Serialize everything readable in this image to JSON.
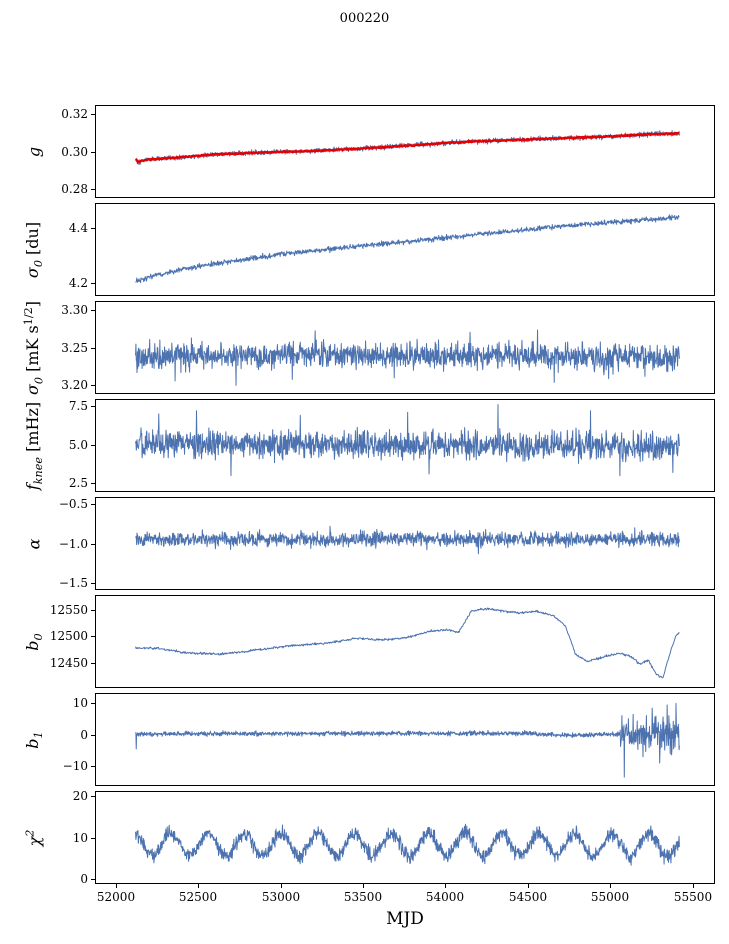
{
  "chart_data": {
    "type": "line",
    "title": "000220",
    "xlabel": "MJD",
    "grid": false,
    "legend_position": "none",
    "xlim": [
      51880,
      55630
    ],
    "x_ticks": [
      52000,
      52500,
      53000,
      53500,
      54000,
      54500,
      55000,
      55500
    ],
    "x_tick_labels": [
      "52000",
      "52500",
      "53000",
      "53500",
      "54000",
      "54500",
      "55000",
      "55500"
    ],
    "x_data_range": [
      52120,
      55420
    ],
    "colors": {
      "line": "#4c72b0",
      "overlay": "#e60000",
      "axis": "#000000",
      "background": "#ffffff"
    },
    "subplots": [
      {
        "ylabel": "g",
        "ylim": [
          0.2755,
          0.3245
        ],
        "yticks": [
          0.28,
          0.3,
          0.32
        ],
        "ytick_labels": [
          "0.28",
          "0.30",
          "0.32"
        ],
        "series": [
          {
            "name": "g raw",
            "color": "#4c72b0",
            "width": 1,
            "points": 1500,
            "noise": 0.0008,
            "seed": 101,
            "trend": [
              [
                52120,
                0.2958
              ],
              [
                52135,
                0.2942
              ],
              [
                52155,
                0.295
              ],
              [
                52200,
                0.2957
              ],
              [
                52300,
                0.2963
              ],
              [
                52450,
                0.2974
              ],
              [
                52600,
                0.2984
              ],
              [
                52800,
                0.2992
              ],
              [
                53000,
                0.2998
              ],
              [
                53200,
                0.3003
              ],
              [
                53400,
                0.3012
              ],
              [
                53600,
                0.3022
              ],
              [
                53800,
                0.3033
              ],
              [
                54000,
                0.3046
              ],
              [
                54200,
                0.3055
              ],
              [
                54400,
                0.3061
              ],
              [
                54600,
                0.3068
              ],
              [
                54800,
                0.3075
              ],
              [
                55000,
                0.3081
              ],
              [
                55200,
                0.3091
              ],
              [
                55350,
                0.3096
              ],
              [
                55420,
                0.3097
              ]
            ]
          },
          {
            "name": "g smoothed fit",
            "color": "#e60000",
            "width": 2.4,
            "points": 700,
            "noise": 0.0002,
            "seed": 102,
            "trend": [
              [
                52120,
                0.2958
              ],
              [
                52135,
                0.2942
              ],
              [
                52155,
                0.295
              ],
              [
                52200,
                0.2957
              ],
              [
                52300,
                0.2963
              ],
              [
                52450,
                0.2974
              ],
              [
                52600,
                0.2984
              ],
              [
                52800,
                0.2992
              ],
              [
                53000,
                0.2998
              ],
              [
                53200,
                0.3003
              ],
              [
                53400,
                0.3012
              ],
              [
                53600,
                0.3022
              ],
              [
                53800,
                0.3033
              ],
              [
                54000,
                0.3046
              ],
              [
                54200,
                0.3055
              ],
              [
                54400,
                0.3061
              ],
              [
                54600,
                0.3068
              ],
              [
                54800,
                0.3075
              ],
              [
                55000,
                0.3081
              ],
              [
                55200,
                0.3091
              ],
              [
                55350,
                0.3096
              ],
              [
                55420,
                0.3097
              ]
            ]
          }
        ]
      },
      {
        "ylabel": "σ_{0} [du]",
        "ylim": [
          4.155,
          4.49
        ],
        "yticks": [
          4.2,
          4.4
        ],
        "ytick_labels": [
          "4.2",
          "4.4"
        ],
        "series": [
          {
            "name": "sigma0 du",
            "color": "#4c72b0",
            "width": 1,
            "points": 1400,
            "noise": 0.0055,
            "seed": 201,
            "trend": [
              [
                52120,
                4.206
              ],
              [
                52250,
                4.228
              ],
              [
                52400,
                4.249
              ],
              [
                52600,
                4.27
              ],
              [
                52800,
                4.288
              ],
              [
                53000,
                4.305
              ],
              [
                53200,
                4.318
              ],
              [
                53400,
                4.33
              ],
              [
                53700,
                4.348
              ],
              [
                54000,
                4.366
              ],
              [
                54300,
                4.385
              ],
              [
                54600,
                4.403
              ],
              [
                54900,
                4.418
              ],
              [
                55150,
                4.428
              ],
              [
                55420,
                4.442
              ]
            ]
          }
        ]
      },
      {
        "ylabel": "σ_{0} [mK s^{1/2}]",
        "ylim": [
          3.19,
          3.31
        ],
        "yticks": [
          3.2,
          3.25,
          3.3
        ],
        "ytick_labels": [
          "3.20",
          "3.25",
          "3.30"
        ],
        "series": [
          {
            "name": "sigma0 mK",
            "color": "#4c72b0",
            "width": 1,
            "points": 1500,
            "noise": 0.01,
            "seed": 301,
            "trend": [
              [
                52120,
                3.2385
              ],
              [
                53500,
                3.24
              ],
              [
                54500,
                3.238
              ],
              [
                55420,
                3.2365
              ]
            ],
            "spikes": [
              [
                52360,
                3.206
              ],
              [
                52730,
                3.2
              ],
              [
                53070,
                3.208
              ],
              [
                53210,
                3.272
              ],
              [
                53690,
                3.21
              ],
              [
                54150,
                3.27
              ],
              [
                54560,
                3.273
              ],
              [
                54660,
                3.204
              ],
              [
                54990,
                3.209
              ],
              [
                55210,
                3.212
              ]
            ]
          }
        ]
      },
      {
        "ylabel": "f_{knee} [mHz]",
        "ylim": [
          2.0,
          7.9
        ],
        "yticks": [
          2.5,
          5.0,
          7.5
        ],
        "ytick_labels": [
          "2.5",
          "5.0",
          "7.5"
        ],
        "series": [
          {
            "name": "fknee",
            "color": "#4c72b0",
            "width": 1,
            "points": 1500,
            "noise": 0.52,
            "seed": 401,
            "trend": [
              [
                52120,
                5.05
              ],
              [
                53500,
                5.0
              ],
              [
                54800,
                4.95
              ],
              [
                55420,
                4.85
              ]
            ],
            "spikes": [
              [
                52260,
                7.0
              ],
              [
                52490,
                7.2
              ],
              [
                52700,
                3.0
              ],
              [
                53120,
                6.9
              ],
              [
                53770,
                7.1
              ],
              [
                53900,
                3.1
              ],
              [
                54320,
                7.6
              ],
              [
                54880,
                7.2
              ],
              [
                55060,
                3.0
              ],
              [
                55380,
                3.2
              ]
            ]
          }
        ]
      },
      {
        "ylabel": "α",
        "ylim": [
          -1.58,
          -0.42
        ],
        "yticks": [
          -1.5,
          -1.0,
          -0.5
        ],
        "ytick_labels": [
          "−1.5",
          "−1.0",
          "−0.5"
        ],
        "series": [
          {
            "name": "alpha",
            "color": "#4c72b0",
            "width": 1,
            "points": 1500,
            "noise": 0.055,
            "seed": 501,
            "trend": [
              [
                52120,
                -0.955
              ],
              [
                53500,
                -0.945
              ],
              [
                55420,
                -0.95
              ]
            ],
            "spikes": [
              [
                53300,
                -0.78
              ],
              [
                54200,
                -1.13
              ],
              [
                55150,
                -0.8
              ]
            ]
          }
        ]
      },
      {
        "ylabel": "b_{0}",
        "ylim": [
          12404,
          12576
        ],
        "yticks": [
          12450,
          12500,
          12550
        ],
        "ytick_labels": [
          "12450",
          "12500",
          "12550"
        ],
        "series": [
          {
            "name": "b0",
            "color": "#4c72b0",
            "width": 1,
            "points": 1000,
            "noise": 1.2,
            "seed": 601,
            "trend": [
              [
                52120,
                12478
              ],
              [
                52260,
                12477
              ],
              [
                52430,
                12468
              ],
              [
                52630,
                12466
              ],
              [
                52830,
                12473
              ],
              [
                53060,
                12482
              ],
              [
                53260,
                12486
              ],
              [
                53460,
                12496
              ],
              [
                53610,
                12493
              ],
              [
                53760,
                12497
              ],
              [
                53910,
                12510
              ],
              [
                54010,
                12512
              ],
              [
                54080,
                12508
              ],
              [
                54160,
                12548
              ],
              [
                54260,
                12552
              ],
              [
                54360,
                12547
              ],
              [
                54460,
                12544
              ],
              [
                54560,
                12547
              ],
              [
                54660,
                12538
              ],
              [
                54730,
                12518
              ],
              [
                54790,
                12466
              ],
              [
                54860,
                12452
              ],
              [
                54960,
                12461
              ],
              [
                55060,
                12468
              ],
              [
                55130,
                12461
              ],
              [
                55180,
                12447
              ],
              [
                55230,
                12455
              ],
              [
                55280,
                12428
              ],
              [
                55320,
                12421
              ],
              [
                55360,
                12465
              ],
              [
                55400,
                12502
              ],
              [
                55420,
                12506
              ]
            ]
          }
        ]
      },
      {
        "ylabel": "b_{1}",
        "ylim": [
          -16,
          13
        ],
        "yticks": [
          -10,
          0,
          10
        ],
        "ytick_labels": [
          "−10",
          "0",
          "10"
        ],
        "series": [
          {
            "name": "b1",
            "color": "#4c72b0",
            "width": 1,
            "points": 1600,
            "noise": 0.42,
            "seed": 701,
            "trend": [
              [
                52120,
                0.3
              ],
              [
                54500,
                0.5
              ],
              [
                54700,
                -0.2
              ],
              [
                54900,
                0.0
              ],
              [
                55420,
                0.3
              ]
            ],
            "noise_regions": [
              {
                "from": 55060,
                "to": 55420,
                "noise": 3.2
              }
            ],
            "spikes": [
              [
                52125,
                -4.5
              ],
              [
                55085,
                -13.5
              ],
              [
                55140,
                6.5
              ],
              [
                55200,
                -7.0
              ],
              [
                55255,
                8.5
              ],
              [
                55300,
                -9.0
              ],
              [
                55345,
                9.5
              ],
              [
                55375,
                -5.0
              ],
              [
                55400,
                10.0
              ]
            ]
          }
        ]
      },
      {
        "ylabel": "χ^{2}",
        "ylim": [
          -1,
          21
        ],
        "yticks": [
          0,
          10,
          20
        ],
        "ytick_labels": [
          "0",
          "10",
          "20"
        ],
        "series": [
          {
            "name": "chi2",
            "color": "#4c72b0",
            "width": 1,
            "points": 1600,
            "noise": 1.05,
            "seed": 801,
            "trend": [
              [
                52120,
                8.3
              ],
              [
                55420,
                8.2
              ]
            ],
            "osc": {
              "amp": 2.7,
              "period": 223,
              "phase": 1.8
            }
          }
        ]
      }
    ]
  }
}
